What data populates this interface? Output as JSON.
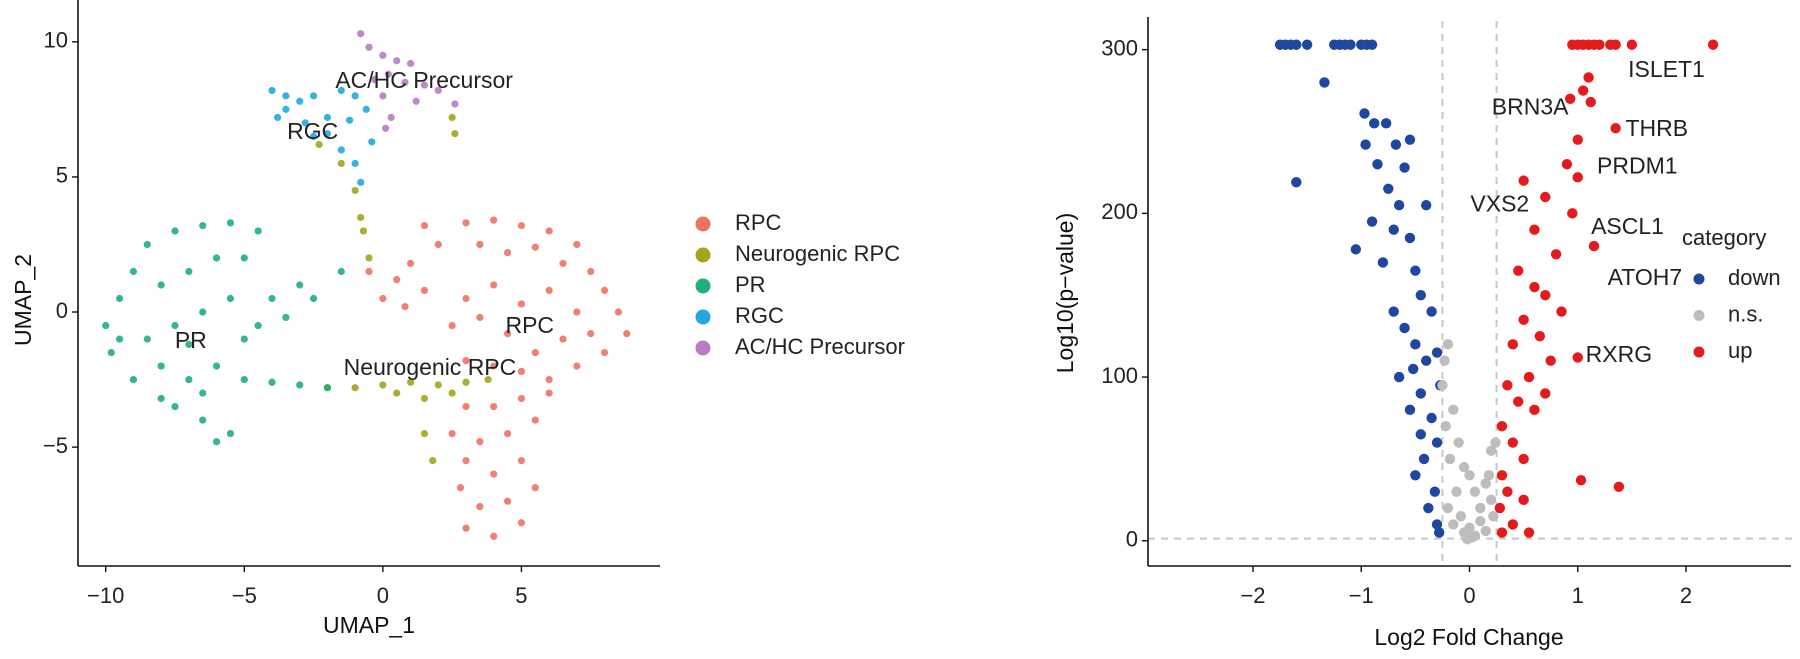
{
  "chart_data": [
    {
      "type": "scatter",
      "xlabel": "UMAP_1",
      "ylabel": "UMAP_2",
      "xlim": [
        -11,
        10
      ],
      "ylim": [
        -9.4,
        11.4
      ],
      "xticks": [
        {
          "value": -10,
          "label": "−10"
        },
        {
          "value": -5,
          "label": "−5"
        },
        0,
        5
      ],
      "yticks": [
        {
          "value": -5,
          "label": "−5"
        },
        0,
        5,
        10
      ],
      "series": [
        {
          "name": "RPC",
          "color": "#ee7165",
          "x": [
            3,
            4,
            5,
            6,
            7,
            3.5,
            4.5,
            5.5,
            6.5,
            7.5,
            8,
            8.5,
            8.8,
            8,
            7,
            6,
            5,
            4,
            3,
            2.5,
            3,
            4,
            5,
            6,
            7,
            7.5,
            6.5,
            4.5,
            3.5,
            5.5,
            3,
            4,
            5,
            5.5,
            4.5,
            3.5,
            3,
            4,
            5,
            5.5,
            4.5,
            3.5,
            2.8,
            3,
            4,
            5,
            2.5,
            6,
            -0.5,
            0.5,
            1,
            1.5,
            0,
            2,
            1.5,
            0.8
          ],
          "values": [
            3.3,
            3.4,
            3.2,
            3,
            2.5,
            2.5,
            2.2,
            2.4,
            1.8,
            1.5,
            0.8,
            0,
            -0.8,
            -1.5,
            -2,
            -2.5,
            -2.2,
            -2,
            -1.8,
            -0.5,
            0.5,
            1,
            0.3,
            0.8,
            0,
            -0.8,
            -1,
            -0.8,
            -0.2,
            -1.5,
            -3.5,
            -3.5,
            -3.2,
            -4,
            -4.5,
            -4.8,
            -5.5,
            -6,
            -5.5,
            -6.5,
            -7,
            -7.2,
            -6.5,
            -8,
            -8.3,
            -7.8,
            -4.5,
            -3,
            1.5,
            1.2,
            1.8,
            0.8,
            0.5,
            2.5,
            3.2,
            0.2
          ]
        },
        {
          "name": "Neurogenic RPC",
          "color": "#a3a51c",
          "x": [
            -2,
            -1,
            0,
            1,
            2,
            3,
            3.8,
            1.5,
            2.5,
            0.5,
            1.5,
            1.8,
            -0.8,
            -1,
            -1.5,
            -2.3,
            -0.5,
            2.5,
            2.6,
            -0.7
          ],
          "values": [
            -2.8,
            -2.8,
            -2.7,
            -2.6,
            -2.7,
            -2.6,
            -2.5,
            -3.2,
            -3,
            -3,
            -4.5,
            -5.5,
            3.5,
            4.5,
            5.5,
            6.2,
            2,
            7.2,
            6.6,
            3
          ]
        },
        {
          "name": "PR",
          "color": "#1fb077",
          "x": [
            -9.5,
            -10,
            -9.8,
            -9,
            -8.5,
            -7.5,
            -6.5,
            -5.5,
            -4.5,
            -8,
            -7,
            -6,
            -5,
            -8.5,
            -7.5,
            -6.5,
            -5.5,
            -9,
            -8,
            -7,
            -6,
            -5,
            -4,
            -3,
            -2,
            -7.5,
            -6.5,
            -5.5,
            -6.5,
            -8,
            -4.5,
            -3.5,
            -2.5,
            -1.5,
            -4,
            -3,
            -5,
            -9.5,
            -7,
            -6
          ],
          "values": [
            0.5,
            -0.5,
            -1.5,
            1.5,
            2.5,
            3,
            3.2,
            3.3,
            3,
            1,
            1.5,
            2,
            2,
            -1,
            -0.5,
            0,
            0.5,
            -2.5,
            -2,
            -2.5,
            -2,
            -2.5,
            -2.6,
            -2.7,
            -2.8,
            -3.5,
            -4,
            -4.5,
            -3,
            -3.2,
            -0.5,
            -0.2,
            0.5,
            1.5,
            0.5,
            1,
            -1,
            -1,
            -1.2,
            -4.8
          ]
        },
        {
          "name": "RGC",
          "color": "#22a7e0",
          "x": [
            -4,
            -3.5,
            -3,
            -2.5,
            -1.5,
            -1,
            -3.8,
            -2.8,
            -2,
            -1.2,
            -0.6,
            -2.5,
            -1.5,
            -1,
            -0.8,
            -3.5,
            -2,
            -0.4
          ],
          "values": [
            8.2,
            8,
            7.8,
            8,
            8.2,
            8,
            7.2,
            7,
            7.2,
            7.1,
            7.5,
            6.5,
            6,
            5.5,
            4.8,
            7.5,
            6.6,
            6.3
          ]
        },
        {
          "name": "AC/HC Precursor",
          "color": "#b77cc2",
          "x": [
            -0.8,
            -0.5,
            0,
            0.5,
            1,
            0.2,
            0.8,
            1.5,
            2,
            2.6,
            0,
            0.3,
            1.2,
            -0.3,
            0.1
          ],
          "values": [
            10.3,
            9.8,
            9.5,
            9.3,
            9.2,
            8.8,
            8.5,
            8.4,
            8.2,
            7.7,
            8,
            7.2,
            7.8,
            8.6,
            6.8
          ]
        }
      ],
      "annotations": [
        {
          "text": "AC/HC Precursor",
          "x": 1.49,
          "y": 8.52
        },
        {
          "text": "RGC",
          "x": -2.53,
          "y": 6.62
        },
        {
          "text": "PR",
          "x": -6.93,
          "y": -1.1
        },
        {
          "text": "RPC",
          "x": 5.3,
          "y": -0.55
        },
        {
          "text": "Neurogenic RPC",
          "x": 1.7,
          "y": -2.1
        }
      ]
    },
    {
      "type": "scatter",
      "xlabel": "Log2 Fold Change",
      "ylabel": "Log10(p−value)",
      "legend_title": "category",
      "xlim": [
        -2.97,
        2.97
      ],
      "ylim": [
        -15.4,
        317.5
      ],
      "xticks": [
        {
          "value": -2,
          "label": "−2"
        },
        {
          "value": -1,
          "label": "−1"
        },
        0,
        1,
        2
      ],
      "yticks": [
        0,
        100,
        200,
        300
      ],
      "vlines": [
        -0.25,
        0.25
      ],
      "hline": 1.3,
      "annotation_color": "#2a55a8",
      "series": [
        {
          "name": "down",
          "color": "#1f47a0",
          "x": [
            -1.75,
            -1.7,
            -1.65,
            -1.6,
            -1.5,
            -1.25,
            -1.2,
            -1.15,
            -1.1,
            -1.0,
            -0.95,
            -0.9,
            -1.34,
            -0.97,
            -0.88,
            -0.77,
            -0.96,
            -0.68,
            -1.6,
            -0.55,
            -0.85,
            -0.6,
            -0.75,
            -0.65,
            -0.4,
            -0.9,
            -0.7,
            -0.55,
            -1.05,
            -0.8,
            -0.5,
            -0.45,
            -0.7,
            -0.6,
            -0.35,
            -0.5,
            -0.4,
            -0.65,
            -0.3,
            -0.45,
            -0.55,
            -0.35,
            -0.3,
            -0.42,
            -0.5,
            -0.32,
            -0.38,
            -0.3,
            -0.28,
            -0.45,
            -0.27,
            -0.52
          ],
          "values": [
            303,
            303,
            303,
            303,
            303,
            303,
            303,
            303,
            303,
            303,
            303,
            303,
            280,
            261,
            255,
            255,
            242,
            242,
            219,
            245,
            230,
            228,
            215,
            205,
            205,
            195,
            190,
            185,
            178,
            170,
            165,
            150,
            140,
            130,
            140,
            120,
            110,
            100,
            115,
            90,
            80,
            75,
            60,
            50,
            40,
            30,
            20,
            10,
            5,
            65,
            95,
            105
          ]
        },
        {
          "name": "n.s.",
          "color": "#bdbdbd",
          "x": [
            -0.2,
            -0.25,
            -0.15,
            -0.22,
            -0.1,
            -0.18,
            -0.05,
            0.0,
            0.05,
            0.15,
            0.2,
            0.22,
            -0.12,
            -0.2,
            0.1,
            0.0,
            -0.05,
            0.05,
            0.15,
            -0.15,
            0.18,
            0.1,
            -0.08,
            0.02,
            -0.02,
            0.2,
            -0.23,
            0.24
          ],
          "values": [
            120,
            95,
            80,
            70,
            60,
            50,
            45,
            40,
            30,
            35,
            25,
            15,
            30,
            20,
            12,
            8,
            5,
            3,
            6,
            10,
            40,
            20,
            15,
            2,
            1,
            55,
            110,
            60
          ]
        },
        {
          "name": "up",
          "color": "#e41a1c",
          "x": [
            0.95,
            1.0,
            1.05,
            1.1,
            1.15,
            1.2,
            1.3,
            1.35,
            1.5,
            2.25,
            1.1,
            1.05,
            1.12,
            0.93,
            1.0,
            1.35,
            0.9,
            1.0,
            0.5,
            0.7,
            0.95,
            1.15,
            0.6,
            0.8,
            0.45,
            0.6,
            0.7,
            0.85,
            0.5,
            0.65,
            0.4,
            0.75,
            1.0,
            0.55,
            0.35,
            0.45,
            0.6,
            0.3,
            0.4,
            0.5,
            0.3,
            0.35,
            0.28,
            0.4,
            0.55,
            1.03,
            1.38,
            0.7,
            0.3,
            0.5
          ],
          "values": [
            303,
            303,
            303,
            303,
            303,
            303,
            303,
            303,
            303,
            303,
            283,
            275,
            268,
            270,
            245,
            252,
            230,
            222,
            220,
            210,
            200,
            180,
            190,
            175,
            165,
            155,
            150,
            140,
            135,
            125,
            120,
            110,
            112,
            100,
            95,
            85,
            80,
            70,
            60,
            50,
            40,
            30,
            20,
            10,
            5,
            37,
            33,
            90,
            5,
            25
          ]
        }
      ],
      "annotations": [
        {
          "text": "ISLET1",
          "x": 1.82,
          "y": 287
        },
        {
          "text": "BRN3A",
          "x": 0.56,
          "y": 264
        },
        {
          "text": "THRB",
          "x": 1.73,
          "y": 251
        },
        {
          "text": "PRDM1",
          "x": 1.55,
          "y": 228
        },
        {
          "text": "VXS2",
          "x": 0.28,
          "y": 205
        },
        {
          "text": "ASCL1",
          "x": 1.46,
          "y": 191
        },
        {
          "text": "ATOH7",
          "x": 1.62,
          "y": 160
        },
        {
          "text": "RXRG",
          "x": 1.38,
          "y": 113
        }
      ]
    }
  ]
}
